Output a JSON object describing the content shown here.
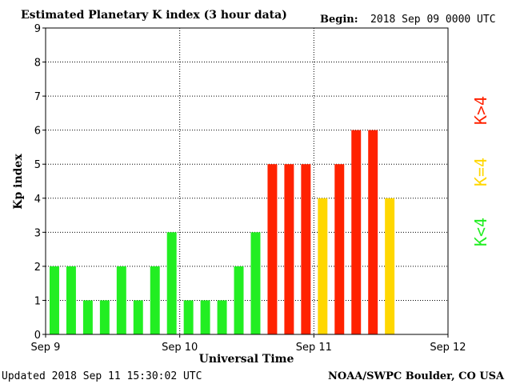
{
  "header": {
    "title": "Estimated Planetary K index (3 hour data)",
    "begin_label": "Begin:",
    "begin_value": "2018 Sep 09 0000 UTC"
  },
  "footer": {
    "updated": "Updated 2018 Sep 11 15:30:02 UTC",
    "source": "NOAA/SWPC Boulder, CO USA"
  },
  "legend": [
    {
      "label": "K<4",
      "color": "#22ee22"
    },
    {
      "label": "K=4",
      "color": "#ffd700"
    },
    {
      "label": "K>4",
      "color": "#ff2200"
    }
  ],
  "chart_data": {
    "type": "bar",
    "title": "Estimated Planetary K index (3 hour data)",
    "xlabel": "Universal Time",
    "ylabel": "Kp index",
    "ylim": [
      0,
      9
    ],
    "yticks": [
      0,
      1,
      2,
      3,
      4,
      5,
      6,
      7,
      8,
      9
    ],
    "xticks": [
      "Sep 9",
      "Sep 10",
      "Sep 11",
      "Sep 12"
    ],
    "slots_total": 24,
    "grid": true,
    "values": [
      2,
      2,
      1,
      1,
      2,
      1,
      2,
      3,
      1,
      1,
      1,
      2,
      3,
      5,
      5,
      5,
      4,
      5,
      6,
      6,
      4
    ],
    "colors": {
      "below4": "#22ee22",
      "equal4": "#ffd700",
      "above4": "#ff2200"
    }
  }
}
